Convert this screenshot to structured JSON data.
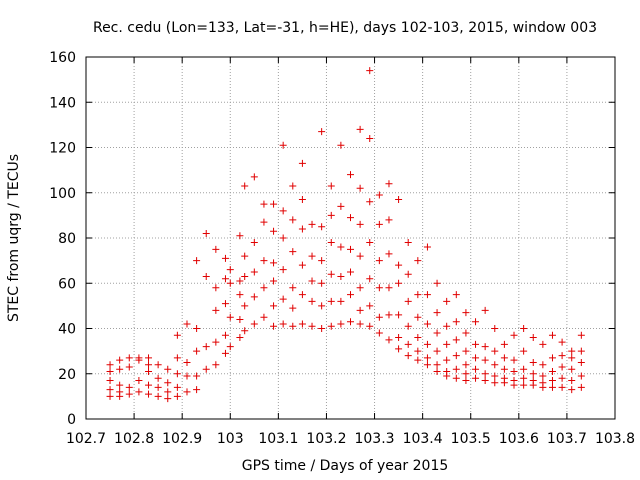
{
  "chart_data": {
    "type": "scatter",
    "title": "Rec. cedu (Lon=133, Lat=-31, h=HE), days 102-103, 2015, window 003",
    "xlabel": "GPS time / Days of year 2015",
    "ylabel": "STEC from uqrg / TECUs",
    "xlim": [
      102.7,
      103.8
    ],
    "ylim": [
      0,
      160
    ],
    "xticks": [
      "102.7",
      "102.8",
      "102.9",
      "103",
      "103.1",
      "103.2",
      "103.3",
      "103.4",
      "103.5",
      "103.6",
      "103.7",
      "103.8"
    ],
    "yticks": [
      "0",
      "20",
      "40",
      "60",
      "80",
      "100",
      "120",
      "140",
      "160"
    ],
    "grid": true,
    "legend": "none",
    "marker": "+",
    "color": "#e00000",
    "points": [
      [
        102.75,
        24
      ],
      [
        102.75,
        21
      ],
      [
        102.75,
        17
      ],
      [
        102.75,
        13
      ],
      [
        102.75,
        10
      ],
      [
        102.77,
        26
      ],
      [
        102.77,
        22
      ],
      [
        102.77,
        15
      ],
      [
        102.77,
        12
      ],
      [
        102.77,
        10
      ],
      [
        102.79,
        27
      ],
      [
        102.79,
        23
      ],
      [
        102.79,
        14
      ],
      [
        102.79,
        11
      ],
      [
        102.81,
        27
      ],
      [
        102.81,
        26
      ],
      [
        102.81,
        17
      ],
      [
        102.81,
        12
      ],
      [
        102.83,
        27
      ],
      [
        102.83,
        24
      ],
      [
        102.83,
        21
      ],
      [
        102.83,
        15
      ],
      [
        102.83,
        11
      ],
      [
        102.85,
        24
      ],
      [
        102.85,
        18
      ],
      [
        102.85,
        14
      ],
      [
        102.85,
        10
      ],
      [
        102.87,
        22
      ],
      [
        102.87,
        16
      ],
      [
        102.87,
        12
      ],
      [
        102.87,
        9
      ],
      [
        102.89,
        37
      ],
      [
        102.89,
        27
      ],
      [
        102.89,
        20
      ],
      [
        102.89,
        14
      ],
      [
        102.89,
        10
      ],
      [
        102.91,
        42
      ],
      [
        102.91,
        25
      ],
      [
        102.91,
        19
      ],
      [
        102.91,
        12
      ],
      [
        102.93,
        70
      ],
      [
        102.93,
        40
      ],
      [
        102.93,
        30
      ],
      [
        102.93,
        19
      ],
      [
        102.93,
        13
      ],
      [
        102.95,
        82
      ],
      [
        102.95,
        63
      ],
      [
        102.95,
        32
      ],
      [
        102.95,
        22
      ],
      [
        102.97,
        75
      ],
      [
        102.97,
        58
      ],
      [
        102.97,
        48
      ],
      [
        102.97,
        34
      ],
      [
        102.97,
        24
      ],
      [
        102.99,
        71
      ],
      [
        102.99,
        62
      ],
      [
        102.99,
        51
      ],
      [
        102.99,
        37
      ],
      [
        102.99,
        29
      ],
      [
        103.0,
        66
      ],
      [
        103.0,
        60
      ],
      [
        103.0,
        45
      ],
      [
        103.0,
        32
      ],
      [
        103.02,
        81
      ],
      [
        103.02,
        61
      ],
      [
        103.02,
        55
      ],
      [
        103.02,
        44
      ],
      [
        103.02,
        36
      ],
      [
        103.03,
        103
      ],
      [
        103.03,
        72
      ],
      [
        103.03,
        63
      ],
      [
        103.03,
        50
      ],
      [
        103.03,
        39
      ],
      [
        103.05,
        107
      ],
      [
        103.05,
        78
      ],
      [
        103.05,
        65
      ],
      [
        103.05,
        54
      ],
      [
        103.05,
        42
      ],
      [
        103.07,
        95
      ],
      [
        103.07,
        87
      ],
      [
        103.07,
        70
      ],
      [
        103.07,
        58
      ],
      [
        103.07,
        45
      ],
      [
        103.09,
        95
      ],
      [
        103.09,
        83
      ],
      [
        103.09,
        69
      ],
      [
        103.09,
        61
      ],
      [
        103.09,
        50
      ],
      [
        103.09,
        41
      ],
      [
        103.11,
        121
      ],
      [
        103.11,
        92
      ],
      [
        103.11,
        80
      ],
      [
        103.11,
        66
      ],
      [
        103.11,
        53
      ],
      [
        103.11,
        42
      ],
      [
        103.13,
        103
      ],
      [
        103.13,
        88
      ],
      [
        103.13,
        74
      ],
      [
        103.13,
        58
      ],
      [
        103.13,
        49
      ],
      [
        103.13,
        41
      ],
      [
        103.15,
        113
      ],
      [
        103.15,
        97
      ],
      [
        103.15,
        84
      ],
      [
        103.15,
        68
      ],
      [
        103.15,
        55
      ],
      [
        103.15,
        42
      ],
      [
        103.17,
        86
      ],
      [
        103.17,
        72
      ],
      [
        103.17,
        61
      ],
      [
        103.17,
        52
      ],
      [
        103.17,
        41
      ],
      [
        103.19,
        127
      ],
      [
        103.19,
        85
      ],
      [
        103.19,
        70
      ],
      [
        103.19,
        60
      ],
      [
        103.19,
        50
      ],
      [
        103.19,
        40
      ],
      [
        103.21,
        103
      ],
      [
        103.21,
        90
      ],
      [
        103.21,
        78
      ],
      [
        103.21,
        64
      ],
      [
        103.21,
        52
      ],
      [
        103.21,
        41
      ],
      [
        103.23,
        121
      ],
      [
        103.23,
        94
      ],
      [
        103.23,
        76
      ],
      [
        103.23,
        63
      ],
      [
        103.23,
        52
      ],
      [
        103.23,
        42
      ],
      [
        103.25,
        108
      ],
      [
        103.25,
        89
      ],
      [
        103.25,
        75
      ],
      [
        103.25,
        65
      ],
      [
        103.25,
        55
      ],
      [
        103.25,
        43
      ],
      [
        103.27,
        128
      ],
      [
        103.27,
        102
      ],
      [
        103.27,
        86
      ],
      [
        103.27,
        72
      ],
      [
        103.27,
        58
      ],
      [
        103.27,
        48
      ],
      [
        103.27,
        42
      ],
      [
        103.29,
        154
      ],
      [
        103.29,
        124
      ],
      [
        103.29,
        96
      ],
      [
        103.29,
        78
      ],
      [
        103.29,
        62
      ],
      [
        103.29,
        50
      ],
      [
        103.29,
        41
      ],
      [
        103.31,
        99
      ],
      [
        103.31,
        86
      ],
      [
        103.31,
        70
      ],
      [
        103.31,
        58
      ],
      [
        103.31,
        45
      ],
      [
        103.31,
        38
      ],
      [
        103.33,
        104
      ],
      [
        103.33,
        88
      ],
      [
        103.33,
        73
      ],
      [
        103.33,
        58
      ],
      [
        103.33,
        46
      ],
      [
        103.33,
        35
      ],
      [
        103.35,
        97
      ],
      [
        103.35,
        68
      ],
      [
        103.35,
        60
      ],
      [
        103.35,
        46
      ],
      [
        103.35,
        36
      ],
      [
        103.35,
        31
      ],
      [
        103.37,
        78
      ],
      [
        103.37,
        64
      ],
      [
        103.37,
        52
      ],
      [
        103.37,
        41
      ],
      [
        103.37,
        33
      ],
      [
        103.37,
        28
      ],
      [
        103.39,
        70
      ],
      [
        103.39,
        55
      ],
      [
        103.39,
        45
      ],
      [
        103.39,
        36
      ],
      [
        103.39,
        30
      ],
      [
        103.39,
        26
      ],
      [
        103.41,
        76
      ],
      [
        103.41,
        55
      ],
      [
        103.41,
        42
      ],
      [
        103.41,
        33
      ],
      [
        103.41,
        27
      ],
      [
        103.41,
        24
      ],
      [
        103.43,
        60
      ],
      [
        103.43,
        47
      ],
      [
        103.43,
        38
      ],
      [
        103.43,
        30
      ],
      [
        103.43,
        24
      ],
      [
        103.43,
        21
      ],
      [
        103.45,
        52
      ],
      [
        103.45,
        41
      ],
      [
        103.45,
        33
      ],
      [
        103.45,
        26
      ],
      [
        103.45,
        21
      ],
      [
        103.45,
        19
      ],
      [
        103.47,
        55
      ],
      [
        103.47,
        43
      ],
      [
        103.47,
        35
      ],
      [
        103.47,
        28
      ],
      [
        103.47,
        22
      ],
      [
        103.47,
        18
      ],
      [
        103.49,
        47
      ],
      [
        103.49,
        38
      ],
      [
        103.49,
        30
      ],
      [
        103.49,
        24
      ],
      [
        103.49,
        20
      ],
      [
        103.49,
        17
      ],
      [
        103.51,
        43
      ],
      [
        103.51,
        33
      ],
      [
        103.51,
        27
      ],
      [
        103.51,
        22
      ],
      [
        103.51,
        18
      ],
      [
        103.53,
        48
      ],
      [
        103.53,
        32
      ],
      [
        103.53,
        26
      ],
      [
        103.53,
        20
      ],
      [
        103.53,
        17
      ],
      [
        103.55,
        40
      ],
      [
        103.55,
        30
      ],
      [
        103.55,
        24
      ],
      [
        103.55,
        19
      ],
      [
        103.55,
        16
      ],
      [
        103.57,
        33
      ],
      [
        103.57,
        27
      ],
      [
        103.57,
        22
      ],
      [
        103.57,
        18
      ],
      [
        103.57,
        16
      ],
      [
        103.59,
        37
      ],
      [
        103.59,
        26
      ],
      [
        103.59,
        21
      ],
      [
        103.59,
        17
      ],
      [
        103.59,
        15
      ],
      [
        103.61,
        40
      ],
      [
        103.61,
        30
      ],
      [
        103.61,
        22
      ],
      [
        103.61,
        18
      ],
      [
        103.61,
        15
      ],
      [
        103.63,
        36
      ],
      [
        103.63,
        25
      ],
      [
        103.63,
        20
      ],
      [
        103.63,
        17
      ],
      [
        103.63,
        15
      ],
      [
        103.65,
        33
      ],
      [
        103.65,
        24
      ],
      [
        103.65,
        19
      ],
      [
        103.65,
        16
      ],
      [
        103.65,
        14
      ],
      [
        103.67,
        37
      ],
      [
        103.67,
        27
      ],
      [
        103.67,
        21
      ],
      [
        103.67,
        17
      ],
      [
        103.67,
        14
      ],
      [
        103.69,
        34
      ],
      [
        103.69,
        28
      ],
      [
        103.69,
        23
      ],
      [
        103.69,
        18
      ],
      [
        103.69,
        14
      ],
      [
        103.71,
        30
      ],
      [
        103.71,
        27
      ],
      [
        103.71,
        22
      ],
      [
        103.71,
        17
      ],
      [
        103.71,
        13
      ],
      [
        103.73,
        37
      ],
      [
        103.73,
        30
      ],
      [
        103.73,
        25
      ],
      [
        103.73,
        19
      ],
      [
        103.73,
        14
      ]
    ]
  }
}
